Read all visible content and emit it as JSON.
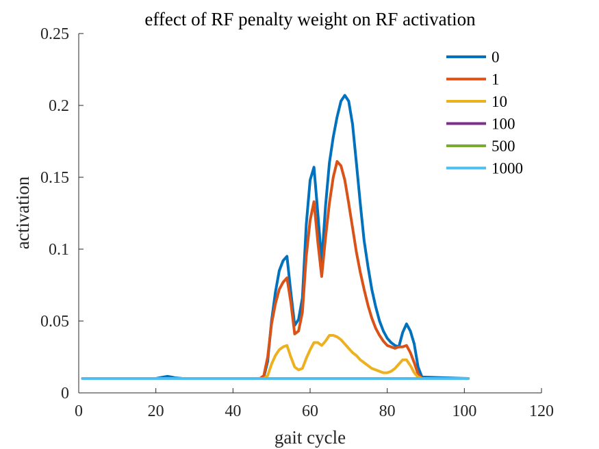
{
  "chart_data": {
    "type": "line",
    "title": "effect of RF penalty weight on RF activation",
    "xlabel": "gait cycle",
    "ylabel": "activation",
    "xlim": [
      0,
      120
    ],
    "ylim": [
      0,
      0.25
    ],
    "xticks": [
      0,
      20,
      40,
      60,
      80,
      100,
      120
    ],
    "xtick_labels": [
      "0",
      "20",
      "40",
      "60",
      "80",
      "100",
      "120"
    ],
    "yticks": [
      0,
      0.05,
      0.1,
      0.15,
      0.2,
      0.25
    ],
    "ytick_labels": [
      "0",
      "0.05",
      "0.1",
      "0.15",
      "0.2",
      "0.25"
    ],
    "grid": false,
    "legend_position": "top-right",
    "series": [
      {
        "name": "0",
        "color": "#0072BD",
        "x": [
          1,
          20,
          22,
          23,
          24,
          25,
          27,
          40,
          47,
          48,
          49,
          50,
          51,
          52,
          53,
          54,
          55,
          56,
          57,
          58,
          59,
          60,
          61,
          62,
          63,
          64,
          65,
          66,
          67,
          68,
          69,
          70,
          71,
          72,
          73,
          74,
          75,
          76,
          77,
          78,
          79,
          80,
          81,
          82,
          83,
          84,
          85,
          86,
          87,
          88,
          89,
          101
        ],
        "y": [
          0.01,
          0.01,
          0.011,
          0.0115,
          0.011,
          0.0105,
          0.01,
          0.01,
          0.01,
          0.011,
          0.022,
          0.05,
          0.07,
          0.085,
          0.092,
          0.095,
          0.07,
          0.047,
          0.051,
          0.066,
          0.117,
          0.148,
          0.157,
          0.125,
          0.091,
          0.13,
          0.16,
          0.178,
          0.192,
          0.203,
          0.207,
          0.203,
          0.187,
          0.16,
          0.132,
          0.106,
          0.088,
          0.072,
          0.06,
          0.05,
          0.043,
          0.038,
          0.035,
          0.033,
          0.032,
          0.042,
          0.048,
          0.043,
          0.034,
          0.018,
          0.011,
          0.01
        ]
      },
      {
        "name": "1",
        "color": "#D95319",
        "x": [
          1,
          47,
          48,
          49,
          50,
          51,
          52,
          53,
          54,
          55,
          56,
          57,
          58,
          59,
          60,
          61,
          62,
          63,
          64,
          65,
          66,
          67,
          68,
          69,
          70,
          71,
          72,
          73,
          74,
          75,
          76,
          77,
          78,
          79,
          80,
          81,
          82,
          83,
          84,
          85,
          86,
          87,
          88,
          89,
          101
        ],
        "y": [
          0.01,
          0.01,
          0.012,
          0.025,
          0.048,
          0.062,
          0.072,
          0.077,
          0.08,
          0.063,
          0.041,
          0.043,
          0.056,
          0.095,
          0.12,
          0.133,
          0.105,
          0.081,
          0.108,
          0.132,
          0.15,
          0.161,
          0.158,
          0.148,
          0.132,
          0.115,
          0.098,
          0.084,
          0.072,
          0.061,
          0.052,
          0.045,
          0.04,
          0.036,
          0.033,
          0.032,
          0.031,
          0.032,
          0.032,
          0.033,
          0.028,
          0.021,
          0.013,
          0.01,
          0.01
        ]
      },
      {
        "name": "10",
        "color": "#EDB120",
        "x": [
          1,
          48,
          49,
          50,
          51,
          52,
          53,
          54,
          55,
          56,
          57,
          58,
          59,
          60,
          61,
          62,
          63,
          64,
          65,
          66,
          67,
          68,
          69,
          70,
          71,
          72,
          73,
          74,
          75,
          76,
          77,
          78,
          79,
          80,
          81,
          82,
          83,
          84,
          85,
          86,
          87,
          88,
          89,
          101
        ],
        "y": [
          0.01,
          0.01,
          0.012,
          0.02,
          0.026,
          0.03,
          0.032,
          0.033,
          0.025,
          0.018,
          0.016,
          0.017,
          0.024,
          0.03,
          0.035,
          0.035,
          0.033,
          0.036,
          0.04,
          0.04,
          0.039,
          0.037,
          0.034,
          0.031,
          0.028,
          0.026,
          0.023,
          0.021,
          0.019,
          0.017,
          0.016,
          0.015,
          0.014,
          0.014,
          0.015,
          0.017,
          0.02,
          0.023,
          0.023,
          0.019,
          0.014,
          0.011,
          0.01,
          0.01
        ]
      },
      {
        "name": "100",
        "color": "#7E2F8E",
        "x": [
          1,
          101
        ],
        "y": [
          0.01,
          0.01
        ]
      },
      {
        "name": "500",
        "color": "#77AC30",
        "x": [
          1,
          101
        ],
        "y": [
          0.01,
          0.01
        ]
      },
      {
        "name": "1000",
        "color": "#4DBEEE",
        "x": [
          1,
          101
        ],
        "y": [
          0.01,
          0.01
        ]
      }
    ]
  }
}
